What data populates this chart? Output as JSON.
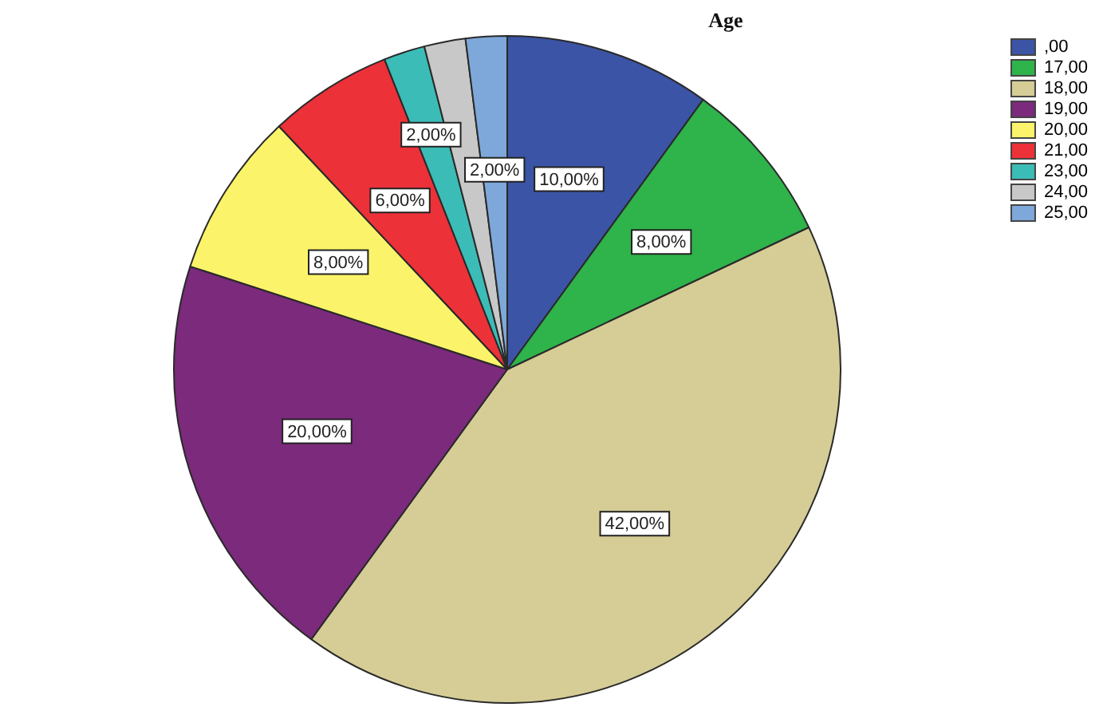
{
  "chart_data": {
    "type": "pie",
    "title": "Age",
    "categories": [
      ",00",
      "17,00",
      "18,00",
      "19,00",
      "20,00",
      "21,00",
      "23,00",
      "24,00",
      "25,00"
    ],
    "values": [
      10,
      8,
      42,
      20,
      8,
      6,
      2,
      2,
      2
    ],
    "colors": [
      "#3b54a5",
      "#2fb34b",
      "#d5cd95",
      "#7b2a7c",
      "#fbf46a",
      "#ec3138",
      "#3cbcb7",
      "#c8c8c8",
      "#7ea8da"
    ],
    "value_labels": [
      "10,00%",
      "8,00%",
      "42,00%",
      "20,00%",
      "8,00%",
      "6,00%",
      "2,00%",
      null,
      "2,00%"
    ],
    "legend": "top right"
  }
}
